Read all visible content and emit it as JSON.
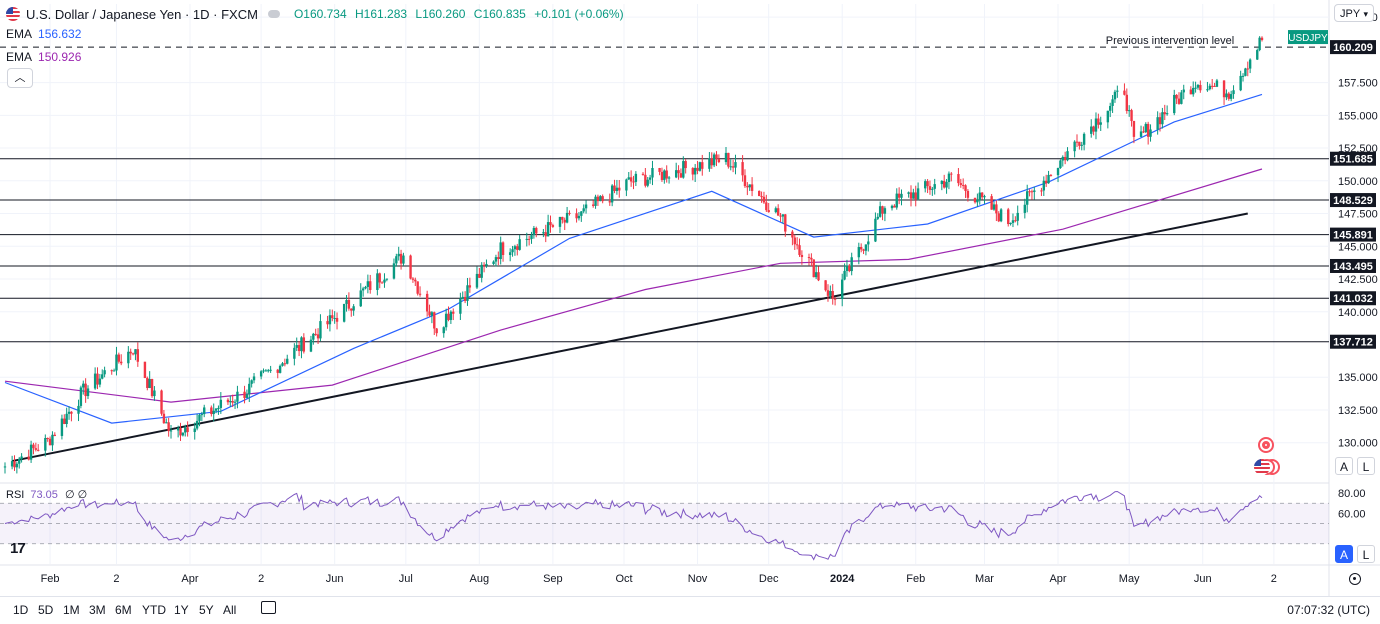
{
  "header": {
    "title": "U.S. Dollar / Japanese Yen · 1D · FXCM",
    "open": "O160.734",
    "high": "H161.283",
    "low": "L160.260",
    "close": "C160.835",
    "change": "+0.101 (+0.06%)"
  },
  "indicators": {
    "ema1_label": "EMA",
    "ema1_value": "156.632",
    "ema2_label": "EMA",
    "ema2_value": "150.926",
    "rsi_label": "RSI",
    "rsi_value": "73.05",
    "rsi_extra": "∅ ∅"
  },
  "currency": "JPY",
  "symbol_tag": "USDJPY",
  "intervention_label": "Previous intervention level",
  "colors": {
    "up": "#089981",
    "down": "#f23645",
    "ema_fast": "#2962ff",
    "ema_slow": "#9c27b0",
    "rsi": "#7e57c2",
    "grid": "#f0f3fa"
  },
  "chart_data": {
    "type": "candlestick",
    "symbol": "USDJPY",
    "x_tick_labels": [
      "Feb",
      "2",
      "Apr",
      "2",
      "Jun",
      "Jul",
      "Aug",
      "Sep",
      "Oct",
      "Nov",
      "Dec",
      "2024",
      "Feb",
      "Mar",
      "Apr",
      "May",
      "Jun",
      "2"
    ],
    "price_ticks": [
      "162.500",
      "157.500",
      "155.000",
      "152.500",
      "150.000",
      "147.500",
      "145.000",
      "142.500",
      "140.000",
      "135.000",
      "132.500",
      "130.000"
    ],
    "ylim": [
      127.0,
      163.5
    ],
    "horizontal_levels": [
      "160.209",
      "151.685",
      "148.529",
      "145.891",
      "143.495",
      "141.032",
      "137.712"
    ],
    "trendline": [
      {
        "date": "2023-01-16",
        "value": 128.6
      },
      {
        "date": "2024-06-20",
        "value": 147.5
      }
    ],
    "close_series": [
      {
        "date": "2023-01-13",
        "value": 128.2
      },
      {
        "date": "2023-01-31",
        "value": 130.1
      },
      {
        "date": "2023-02-15",
        "value": 133.9
      },
      {
        "date": "2023-03-08",
        "value": 137.2
      },
      {
        "date": "2023-03-24",
        "value": 130.6
      },
      {
        "date": "2023-04-07",
        "value": 132.1
      },
      {
        "date": "2023-04-25",
        "value": 134.0
      },
      {
        "date": "2023-05-31",
        "value": 139.4
      },
      {
        "date": "2023-06-30",
        "value": 144.3
      },
      {
        "date": "2023-07-14",
        "value": 138.8
      },
      {
        "date": "2023-08-10",
        "value": 144.8
      },
      {
        "date": "2023-09-13",
        "value": 147.4
      },
      {
        "date": "2023-10-03",
        "value": 149.9
      },
      {
        "date": "2023-11-13",
        "value": 151.7
      },
      {
        "date": "2023-12-06",
        "value": 147.2
      },
      {
        "date": "2023-12-28",
        "value": 141.0
      },
      {
        "date": "2024-01-19",
        "value": 148.1
      },
      {
        "date": "2024-02-16",
        "value": 150.2
      },
      {
        "date": "2024-03-11",
        "value": 146.9
      },
      {
        "date": "2024-04-10",
        "value": 153.2
      },
      {
        "date": "2024-04-29",
        "value": 157.0
      },
      {
        "date": "2024-05-03",
        "value": 152.9
      },
      {
        "date": "2024-05-29",
        "value": 157.6
      },
      {
        "date": "2024-06-12",
        "value": 156.8
      },
      {
        "date": "2024-06-26",
        "value": 160.8
      }
    ],
    "ema_fast": [
      {
        "date": "2023-01-13",
        "value": 134.6
      },
      {
        "date": "2023-02-27",
        "value": 131.5
      },
      {
        "date": "2023-04-14",
        "value": 132.4
      },
      {
        "date": "2023-06-09",
        "value": 137.2
      },
      {
        "date": "2023-07-19",
        "value": 140.2
      },
      {
        "date": "2023-09-08",
        "value": 145.6
      },
      {
        "date": "2023-11-07",
        "value": 149.2
      },
      {
        "date": "2023-12-20",
        "value": 145.7
      },
      {
        "date": "2024-02-06",
        "value": 146.7
      },
      {
        "date": "2024-03-28",
        "value": 149.9
      },
      {
        "date": "2024-05-20",
        "value": 154.5
      },
      {
        "date": "2024-06-26",
        "value": 156.6
      }
    ],
    "ema_slow": [
      {
        "date": "2023-01-13",
        "value": 134.7
      },
      {
        "date": "2023-03-24",
        "value": 133.1
      },
      {
        "date": "2023-05-31",
        "value": 134.4
      },
      {
        "date": "2023-08-10",
        "value": 138.6
      },
      {
        "date": "2023-10-10",
        "value": 141.7
      },
      {
        "date": "2023-12-06",
        "value": 143.7
      },
      {
        "date": "2024-01-29",
        "value": 144.0
      },
      {
        "date": "2024-04-03",
        "value": 146.3
      },
      {
        "date": "2024-06-26",
        "value": 150.9
      }
    ],
    "rsi_ticks": [
      "80.00",
      "60.00"
    ],
    "rsi_ylim": [
      10,
      90
    ]
  },
  "price_axis_buttons": {
    "auto": "A",
    "log": "L"
  },
  "rsi_axis_buttons": {
    "auto": "A",
    "log": "L"
  },
  "toolbar": {
    "tf_1d": "1D",
    "tf_5d": "5D",
    "tf_1m": "1M",
    "tf_3m": "3M",
    "tf_6m": "6M",
    "tf_ytd": "YTD",
    "tf_1y": "1Y",
    "tf_5y": "5Y",
    "tf_all": "All",
    "clock": "07:07:32 (UTC)"
  },
  "icons": {
    "collapse": "chevron-up-icon",
    "currency_dropdown": "chevron-down-icon",
    "logo": "tradingview-logo",
    "settings": "gear-icon",
    "date_range": "calendar-range-icon"
  }
}
